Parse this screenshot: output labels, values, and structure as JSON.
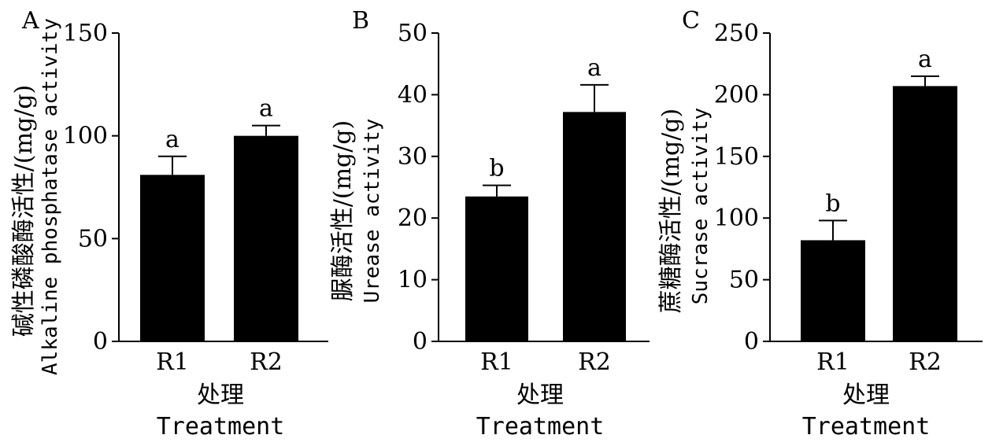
{
  "chart_data": [
    {
      "type": "bar",
      "panel_label": "A",
      "categories": [
        "R1",
        "R2"
      ],
      "values": [
        81,
        100
      ],
      "errors": [
        9,
        5
      ],
      "significance": [
        "a",
        "a"
      ],
      "ylim": [
        0,
        150
      ],
      "yticks": [
        "0",
        "50",
        "100",
        "150"
      ],
      "ylabel_cn": "碱性磷酸酶活性/(mg/g)",
      "ylabel_en": "Alkaline phosphatase activity",
      "xlabel_cn": "处理",
      "xlabel_en": "Treatment",
      "bar_color": "#000000"
    },
    {
      "type": "bar",
      "panel_label": "B",
      "categories": [
        "R1",
        "R2"
      ],
      "values": [
        23.5,
        37.2
      ],
      "errors": [
        1.8,
        4.4
      ],
      "significance": [
        "b",
        "a"
      ],
      "ylim": [
        0,
        50
      ],
      "yticks": [
        "0",
        "10",
        "20",
        "30",
        "40",
        "50"
      ],
      "ylabel_cn": "脲酶活性/(mg/g)",
      "ylabel_en": "Urease activity",
      "xlabel_cn": "处理",
      "xlabel_en": "Treatment",
      "bar_color": "#000000"
    },
    {
      "type": "bar",
      "panel_label": "C",
      "categories": [
        "R1",
        "R2"
      ],
      "values": [
        82,
        207
      ],
      "errors": [
        16,
        8
      ],
      "significance": [
        "b",
        "a"
      ],
      "ylim": [
        0,
        250
      ],
      "yticks": [
        "0",
        "50",
        "100",
        "150",
        "200",
        "250"
      ],
      "ylabel_cn": "蔗糖酶活性/(mg/g)",
      "ylabel_en": "Sucrase activity",
      "xlabel_cn": "处理",
      "xlabel_en": "Treatment",
      "bar_color": "#000000"
    }
  ]
}
